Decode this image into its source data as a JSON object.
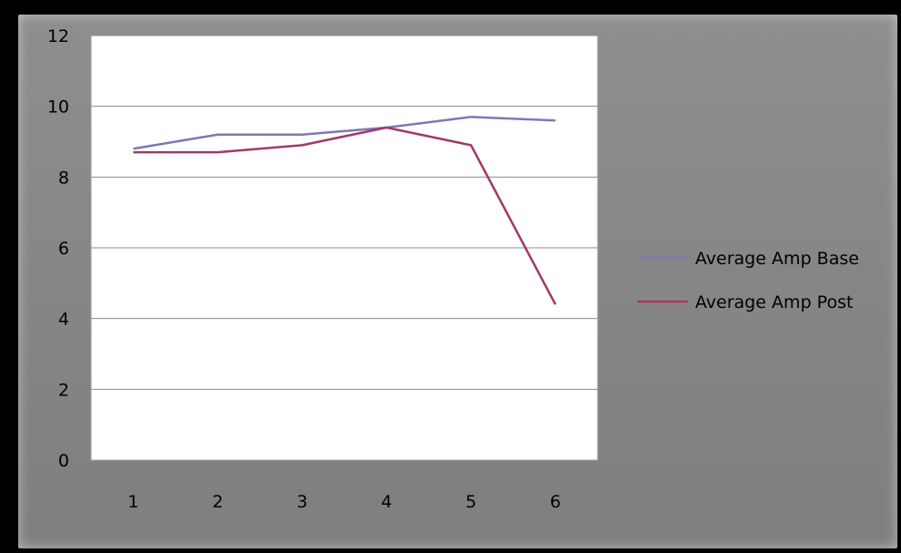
{
  "chart_data": {
    "type": "line",
    "categories": [
      "1",
      "2",
      "3",
      "4",
      "5",
      "6"
    ],
    "series": [
      {
        "name": "Average Amp Base",
        "values": [
          8.8,
          9.2,
          9.2,
          9.4,
          9.7,
          9.6
        ],
        "color": "#7a7ab4"
      },
      {
        "name": "Average Amp Post",
        "values": [
          8.7,
          8.7,
          8.9,
          9.4,
          8.9,
          4.4
        ],
        "color": "#a3386a"
      }
    ],
    "y_ticks": [
      "0",
      "2",
      "4",
      "6",
      "8",
      "10",
      "12"
    ],
    "ylim": [
      0,
      12
    ],
    "grid": true,
    "legend": "right",
    "colors": {
      "plot_bg": "#ffffff",
      "chart_bg": "#8a8a8a",
      "gridline": "#8c8c8c"
    }
  }
}
